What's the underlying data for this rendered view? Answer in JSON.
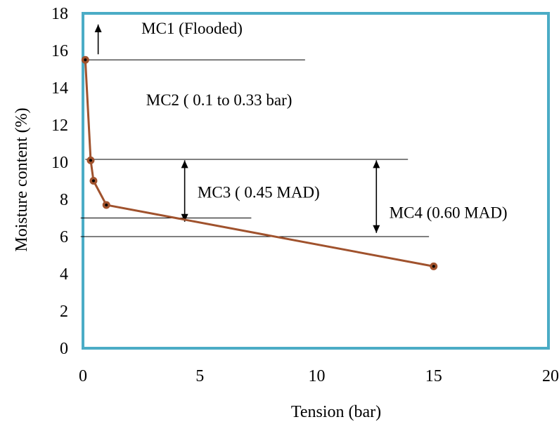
{
  "chart_data": {
    "type": "line",
    "xlabel": "Tension (bar)",
    "ylabel": "Moisture content (%)",
    "xlim": [
      0,
      20
    ],
    "ylim": [
      0,
      18
    ],
    "x_ticks": [
      "0",
      "5",
      "10",
      "15",
      "20"
    ],
    "y_ticks": [
      "0",
      "2",
      "4",
      "6",
      "8",
      "10",
      "12",
      "14",
      "16",
      "18"
    ],
    "grid": false,
    "series": [
      {
        "x": [
          0.1,
          0.33,
          0.45,
          1.0,
          15.0
        ],
        "y": [
          15.5,
          10.1,
          9.0,
          7.7,
          4.4
        ],
        "color": "#a0522d"
      }
    ],
    "reference_lines": [
      {
        "x_range": [
          0.1,
          9.5
        ],
        "y": 15.5
      },
      {
        "x_range": [
          0.1,
          13.9
        ],
        "y": 10.15
      },
      {
        "x_range": [
          -0.1,
          7.2
        ],
        "y": 7.0
      },
      {
        "x_range": [
          -0.1,
          14.8
        ],
        "y": 6.0
      }
    ],
    "arrows": [
      {
        "x": 0.65,
        "from": 15.8,
        "to": 17.4,
        "direction": "up"
      },
      {
        "x": 4.35,
        "from": 6.8,
        "to": 10.1,
        "direction": "both"
      },
      {
        "x": 12.55,
        "from": 6.2,
        "to": 10.1,
        "direction": "both"
      }
    ],
    "annotations": [
      {
        "text": "MC1 (Flooded)",
        "x": 2.5,
        "y": 17.2
      },
      {
        "text": "MC2 ( 0.1 to 0.33 bar)",
        "x": 2.7,
        "y": 13.35
      },
      {
        "text": "MC3 ( 0.45 MAD)",
        "x": 4.9,
        "y": 8.4
      },
      {
        "text": "MC4 (0.60 MAD)",
        "x": 13.1,
        "y": 7.3
      }
    ],
    "colors": {
      "frame": "#4bacc6",
      "series": "#a0522d",
      "marker_center": "#000000"
    }
  }
}
